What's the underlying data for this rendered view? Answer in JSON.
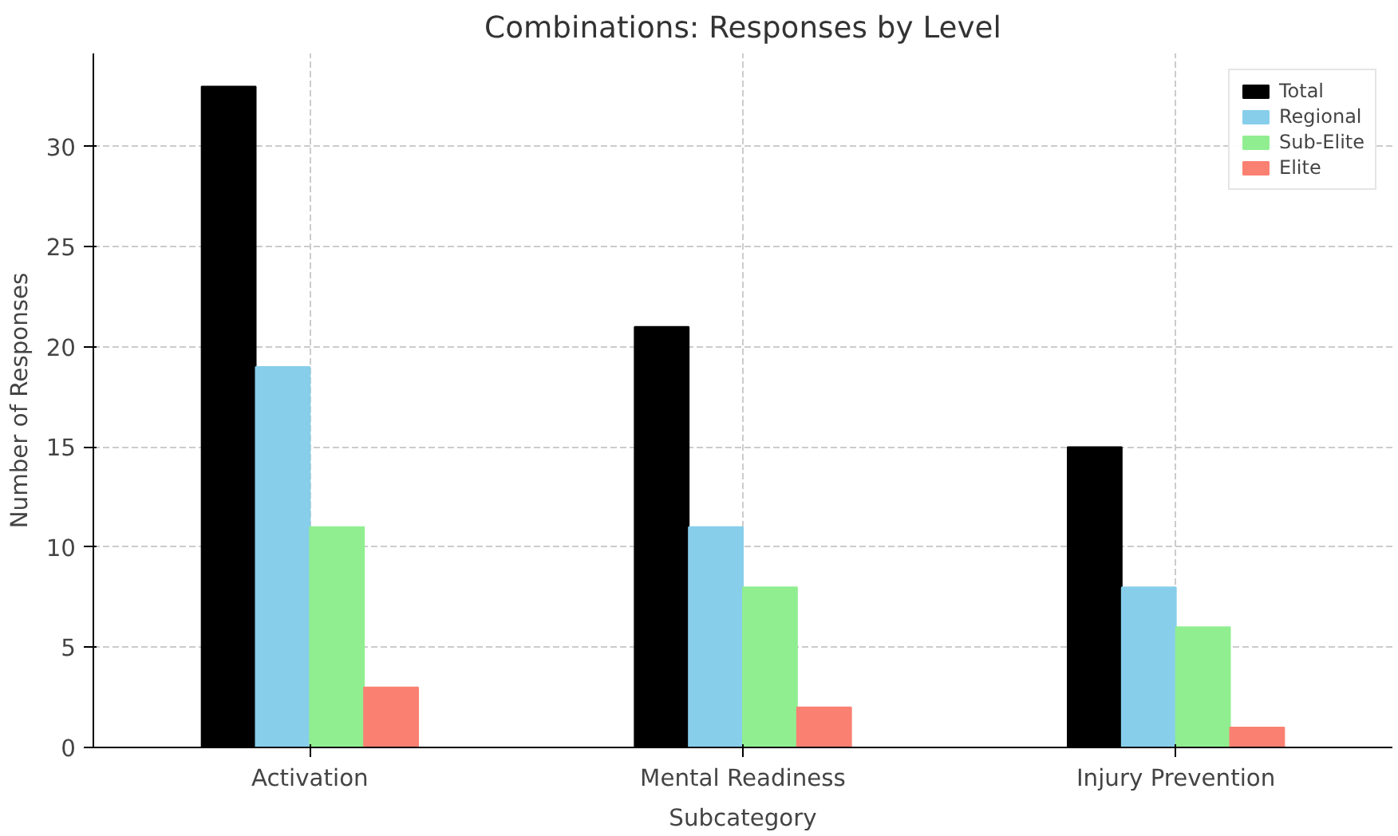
{
  "chart_data": {
    "type": "bar",
    "title": "Combinations: Responses by Level",
    "xlabel": "Subcategory",
    "ylabel": "Number of Responses",
    "categories": [
      "Activation",
      "Mental Readiness",
      "Injury Prevention"
    ],
    "series": [
      {
        "name": "Total",
        "color": "#000000",
        "values": [
          33,
          21,
          15
        ]
      },
      {
        "name": "Regional",
        "color": "#87ceeb",
        "values": [
          19,
          11,
          8
        ]
      },
      {
        "name": "Sub-Elite",
        "color": "#90ee90",
        "values": [
          11,
          8,
          6
        ]
      },
      {
        "name": "Elite",
        "color": "#fa8072",
        "values": [
          3,
          2,
          1
        ]
      }
    ],
    "ylim": [
      0,
      34.65
    ],
    "yticks": [
      0,
      5,
      10,
      15,
      20,
      25,
      30
    ],
    "grid": true,
    "legend": "top right"
  }
}
